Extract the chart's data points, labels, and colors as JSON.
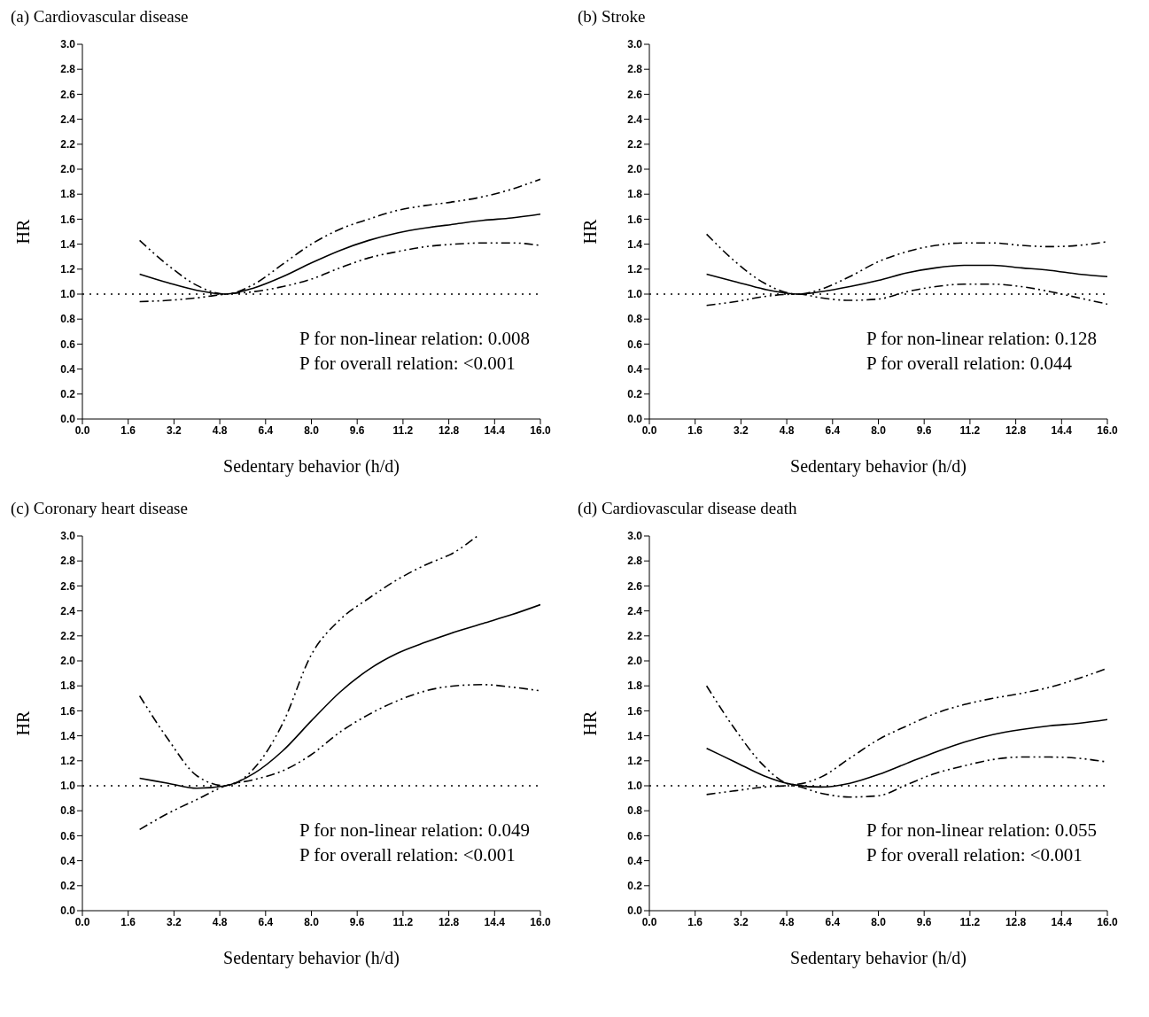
{
  "chart_data": [
    {
      "type": "line",
      "title": "(a) Cardiovascular disease",
      "xlabel": "Sedentary behavior (h/d)",
      "ylabel": "HR",
      "xlim": [
        0,
        16
      ],
      "ylim": [
        0,
        3
      ],
      "xticks": [
        {
          "value": 0,
          "label": "0.0"
        },
        1.6,
        3.2,
        4.8,
        6.4,
        {
          "value": 8,
          "label": "8.0"
        },
        9.6,
        11.2,
        12.8,
        14.4,
        {
          "value": 16,
          "label": "16.0"
        }
      ],
      "yticks": [
        {
          "value": 0,
          "label": "0.0"
        },
        0.2,
        0.4,
        0.6,
        0.8,
        {
          "value": 1,
          "label": "1.0"
        },
        1.2,
        1.4,
        1.6,
        1.8,
        {
          "value": 2,
          "label": "2.0"
        },
        2.2,
        2.4,
        2.6,
        2.8,
        {
          "value": 3,
          "label": "3.0"
        }
      ],
      "grid": false,
      "legend": false,
      "marker": "none",
      "ref_lines": [
        {
          "axis": "y",
          "value": 1,
          "line_style": "dotted",
          "color": "#000000"
        }
      ],
      "annotations": [
        "P for non-linear relation: 0.008",
        "P for overall relation: <0.001"
      ],
      "series": [
        {
          "color": "#000000",
          "line_style": "solid",
          "x": [
            2,
            3,
            4,
            5,
            6,
            7,
            8,
            9,
            10,
            11,
            12,
            13,
            14,
            15,
            16
          ],
          "values": [
            1.16,
            1.09,
            1.03,
            1.0,
            1.05,
            1.14,
            1.25,
            1.35,
            1.43,
            1.49,
            1.53,
            1.56,
            1.59,
            1.61,
            1.64
          ]
        },
        {
          "color": "#000000",
          "line_style": "dashed",
          "x": [
            2,
            3,
            4,
            5,
            6,
            7,
            8,
            9,
            10,
            11,
            12,
            13,
            14,
            15,
            16
          ],
          "values": [
            1.43,
            1.23,
            1.07,
            1.0,
            1.08,
            1.24,
            1.4,
            1.52,
            1.6,
            1.67,
            1.71,
            1.74,
            1.78,
            1.84,
            1.92
          ]
        },
        {
          "color": "#000000",
          "line_style": "dashed",
          "x": [
            2,
            3,
            4,
            5,
            6,
            7,
            8,
            9,
            10,
            11,
            12,
            13,
            14,
            15,
            16
          ],
          "values": [
            0.94,
            0.95,
            0.97,
            1.0,
            1.02,
            1.06,
            1.12,
            1.21,
            1.29,
            1.34,
            1.38,
            1.4,
            1.41,
            1.41,
            1.39
          ]
        }
      ]
    },
    {
      "type": "line",
      "title": "(b) Stroke",
      "xlabel": "Sedentary behavior (h/d)",
      "ylabel": "HR",
      "xlim": [
        0,
        16
      ],
      "ylim": [
        0,
        3
      ],
      "xticks": [
        {
          "value": 0,
          "label": "0.0"
        },
        1.6,
        3.2,
        4.8,
        6.4,
        {
          "value": 8,
          "label": "8.0"
        },
        9.6,
        11.2,
        12.8,
        14.4,
        {
          "value": 16,
          "label": "16.0"
        }
      ],
      "yticks": [
        {
          "value": 0,
          "label": "0.0"
        },
        0.2,
        0.4,
        0.6,
        0.8,
        {
          "value": 1,
          "label": "1.0"
        },
        1.2,
        1.4,
        1.6,
        1.8,
        {
          "value": 2,
          "label": "2.0"
        },
        2.2,
        2.4,
        2.6,
        2.8,
        {
          "value": 3,
          "label": "3.0"
        }
      ],
      "grid": false,
      "legend": false,
      "marker": "none",
      "ref_lines": [
        {
          "axis": "y",
          "value": 1,
          "line_style": "dotted",
          "color": "#000000"
        }
      ],
      "annotations": [
        "P for non-linear relation: 0.128",
        "P for overall relation: 0.044"
      ],
      "series": [
        {
          "color": "#000000",
          "line_style": "solid",
          "x": [
            2,
            3,
            4,
            5.2,
            6,
            7,
            8,
            9,
            10,
            11,
            12,
            13,
            14,
            15,
            16
          ],
          "values": [
            1.16,
            1.1,
            1.04,
            1.0,
            1.02,
            1.06,
            1.11,
            1.17,
            1.21,
            1.23,
            1.23,
            1.21,
            1.19,
            1.16,
            1.14
          ]
        },
        {
          "color": "#000000",
          "line_style": "dashed",
          "x": [
            2,
            3,
            4,
            5.2,
            6,
            7,
            8,
            9,
            10,
            11,
            12,
            13,
            14,
            15,
            16
          ],
          "values": [
            1.48,
            1.26,
            1.09,
            1.0,
            1.04,
            1.14,
            1.26,
            1.34,
            1.39,
            1.41,
            1.41,
            1.39,
            1.38,
            1.39,
            1.42
          ]
        },
        {
          "color": "#000000",
          "line_style": "dashed",
          "x": [
            2,
            3,
            4,
            5.2,
            6,
            7,
            8,
            9,
            10,
            11,
            12,
            13,
            14,
            15,
            16
          ],
          "values": [
            0.91,
            0.94,
            0.98,
            1.0,
            0.97,
            0.95,
            0.96,
            1.02,
            1.06,
            1.08,
            1.08,
            1.06,
            1.02,
            0.97,
            0.92
          ]
        }
      ]
    },
    {
      "type": "line",
      "title": "(c) Coronary heart disease",
      "xlabel": "Sedentary behavior (h/d)",
      "ylabel": "HR",
      "xlim": [
        0,
        16
      ],
      "ylim": [
        0,
        3
      ],
      "xticks": [
        {
          "value": 0,
          "label": "0.0"
        },
        1.6,
        3.2,
        4.8,
        6.4,
        {
          "value": 8,
          "label": "8.0"
        },
        9.6,
        11.2,
        12.8,
        14.4,
        {
          "value": 16,
          "label": "16.0"
        }
      ],
      "yticks": [
        {
          "value": 0,
          "label": "0.0"
        },
        0.2,
        0.4,
        0.6,
        0.8,
        {
          "value": 1,
          "label": "1.0"
        },
        1.2,
        1.4,
        1.6,
        1.8,
        {
          "value": 2,
          "label": "2.0"
        },
        2.2,
        2.4,
        2.6,
        2.8,
        {
          "value": 3,
          "label": "3.0"
        }
      ],
      "grid": false,
      "legend": false,
      "marker": "none",
      "ref_lines": [
        {
          "axis": "y",
          "value": 1,
          "line_style": "dotted",
          "color": "#000000"
        }
      ],
      "annotations": [
        "P for non-linear relation: 0.049",
        "P for overall relation: <0.001"
      ],
      "series": [
        {
          "color": "#000000",
          "line_style": "solid",
          "x": [
            2,
            3,
            4,
            5,
            6,
            7,
            8,
            9,
            10,
            11,
            12,
            13,
            14,
            15,
            16
          ],
          "values": [
            1.06,
            1.02,
            0.98,
            1.0,
            1.1,
            1.28,
            1.52,
            1.75,
            1.93,
            2.06,
            2.15,
            2.23,
            2.3,
            2.37,
            2.45
          ]
        },
        {
          "color": "#000000",
          "line_style": "dashed",
          "x": [
            2,
            3,
            4,
            5,
            6,
            7,
            8,
            9,
            10,
            11,
            12,
            13,
            13.8
          ],
          "values": [
            1.72,
            1.37,
            1.08,
            1.0,
            1.14,
            1.5,
            2.05,
            2.33,
            2.5,
            2.65,
            2.77,
            2.87,
            3.0
          ]
        },
        {
          "color": "#000000",
          "line_style": "dashed",
          "x": [
            2,
            3,
            4,
            5,
            6,
            7,
            8,
            9,
            10,
            11,
            12,
            13,
            14,
            15,
            16
          ],
          "values": [
            0.65,
            0.78,
            0.89,
            1.0,
            1.05,
            1.12,
            1.25,
            1.43,
            1.57,
            1.68,
            1.76,
            1.8,
            1.81,
            1.79,
            1.76
          ]
        }
      ]
    },
    {
      "type": "line",
      "title": "(d) Cardiovascular disease death",
      "xlabel": "Sedentary behavior (h/d)",
      "ylabel": "HR",
      "xlim": [
        0,
        16
      ],
      "ylim": [
        0,
        3
      ],
      "xticks": [
        {
          "value": 0,
          "label": "0.0"
        },
        1.6,
        3.2,
        4.8,
        6.4,
        {
          "value": 8,
          "label": "8.0"
        },
        9.6,
        11.2,
        12.8,
        14.4,
        {
          "value": 16,
          "label": "16.0"
        }
      ],
      "yticks": [
        {
          "value": 0,
          "label": "0.0"
        },
        0.2,
        0.4,
        0.6,
        0.8,
        {
          "value": 1,
          "label": "1.0"
        },
        1.2,
        1.4,
        1.6,
        1.8,
        {
          "value": 2,
          "label": "2.0"
        },
        2.2,
        2.4,
        2.6,
        2.8,
        {
          "value": 3,
          "label": "3.0"
        }
      ],
      "grid": false,
      "legend": false,
      "marker": "none",
      "ref_lines": [
        {
          "axis": "y",
          "value": 1,
          "line_style": "dotted",
          "color": "#000000"
        }
      ],
      "annotations": [
        "P for non-linear relation: 0.055",
        "P for overall relation: <0.001"
      ],
      "series": [
        {
          "color": "#000000",
          "line_style": "solid",
          "x": [
            2,
            3,
            4,
            5,
            6,
            7,
            8,
            9,
            10,
            11,
            12,
            13,
            14,
            15,
            16
          ],
          "values": [
            1.3,
            1.19,
            1.08,
            1.01,
            0.99,
            1.02,
            1.09,
            1.18,
            1.27,
            1.35,
            1.41,
            1.45,
            1.48,
            1.5,
            1.53
          ]
        },
        {
          "color": "#000000",
          "line_style": "dashed",
          "x": [
            2,
            3,
            4,
            5,
            6,
            7,
            8,
            9,
            10,
            11,
            12,
            13,
            14,
            15,
            16
          ],
          "values": [
            1.8,
            1.45,
            1.16,
            1.01,
            1.07,
            1.22,
            1.37,
            1.48,
            1.58,
            1.65,
            1.7,
            1.74,
            1.79,
            1.86,
            1.94
          ]
        },
        {
          "color": "#000000",
          "line_style": "dashed",
          "x": [
            2,
            3,
            4,
            5,
            6,
            7,
            8,
            9,
            10,
            11,
            12,
            13,
            14,
            15,
            16
          ],
          "values": [
            0.93,
            0.96,
            0.99,
            1.0,
            0.94,
            0.91,
            0.92,
            1.01,
            1.1,
            1.16,
            1.21,
            1.23,
            1.23,
            1.22,
            1.19
          ]
        }
      ]
    }
  ]
}
